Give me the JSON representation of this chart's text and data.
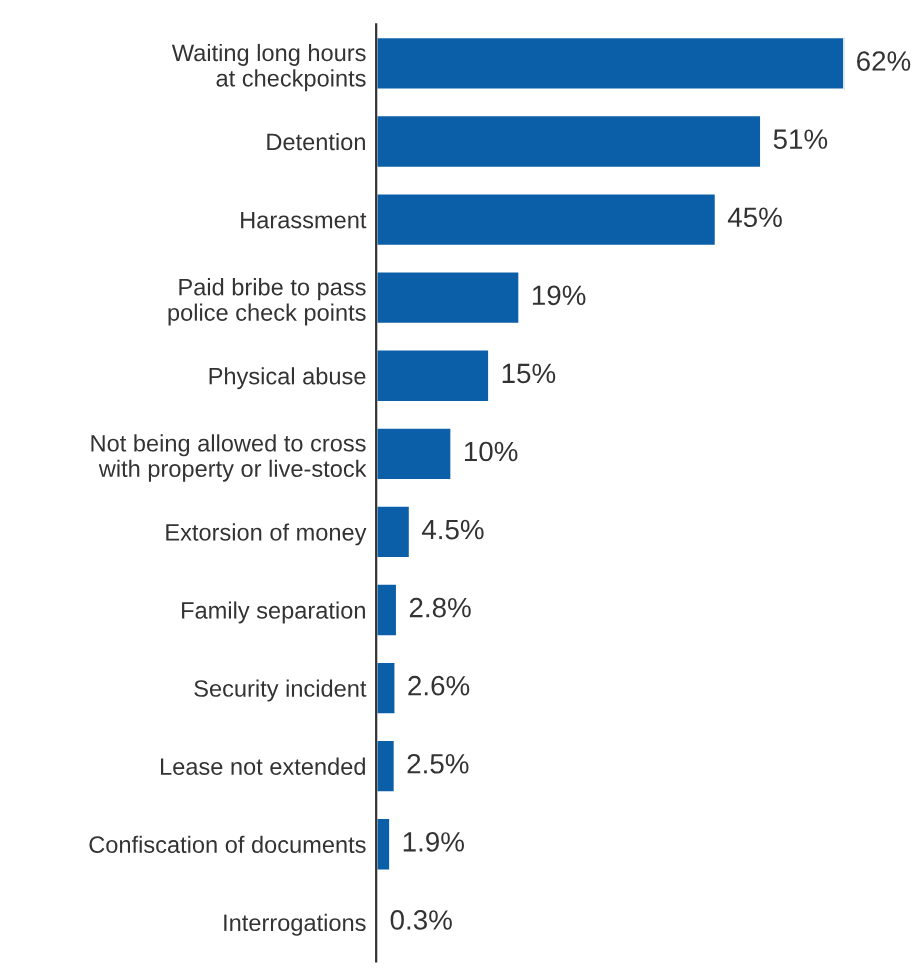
{
  "chart_data": {
    "type": "bar",
    "orientation": "horizontal",
    "categories": [
      "Waiting long hours\nat checkpoints",
      "Detention",
      "Harassment",
      "Paid bribe to pass\npolice check points",
      "Physical abuse",
      "Not being allowed to cross\nwith property or live-stock",
      "Extorsion of money",
      "Family separation",
      "Security incident",
      "Lease not extended",
      "Confiscation of documents",
      "Interrogations"
    ],
    "values": [
      62,
      51,
      45,
      19,
      15,
      10,
      4.5,
      2.8,
      2.6,
      2.5,
      1.9,
      0.3
    ],
    "value_labels": [
      "62%",
      "51%",
      "45%",
      "19%",
      "15%",
      "10%",
      "4.5%",
      "2.8%",
      "2.6%",
      "2.5%",
      "1.9%",
      "0.3%"
    ],
    "color": "#0b5ea8",
    "tick_labels": "y",
    "grid": false,
    "legend": false
  }
}
